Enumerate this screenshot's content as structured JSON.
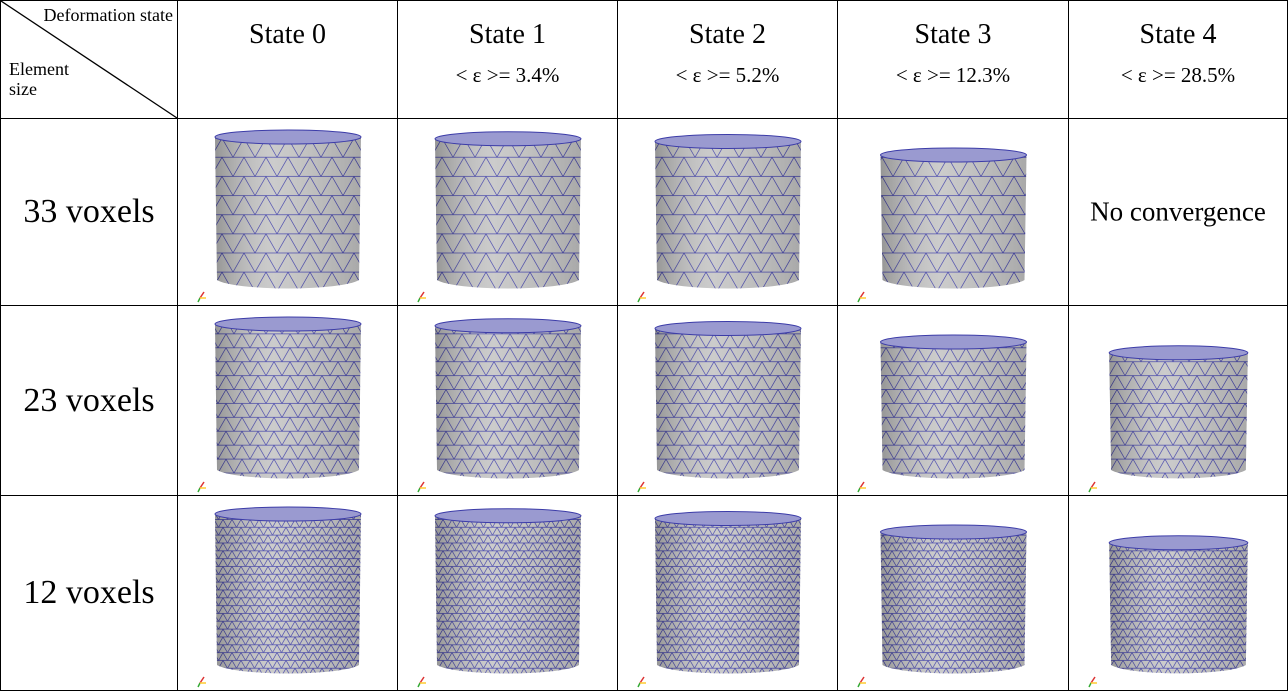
{
  "table": {
    "corner": {
      "top": "Deformation state",
      "bottom": "Element size"
    },
    "columns": [
      {
        "title": "State 0"
      },
      {
        "title": "State 1",
        "strain": "< ε >= 3.4%"
      },
      {
        "title": "State 2",
        "strain": "< ε >= 5.2%"
      },
      {
        "title": "State 3",
        "strain": "< ε >= 12.3%"
      },
      {
        "title": "State 4",
        "strain": "< ε >= 28.5%"
      }
    ],
    "rows": [
      {
        "label": "33 voxels",
        "state_4": "No convergence"
      },
      {
        "label": "23 voxels"
      },
      {
        "label": "12 voxels"
      }
    ]
  }
}
